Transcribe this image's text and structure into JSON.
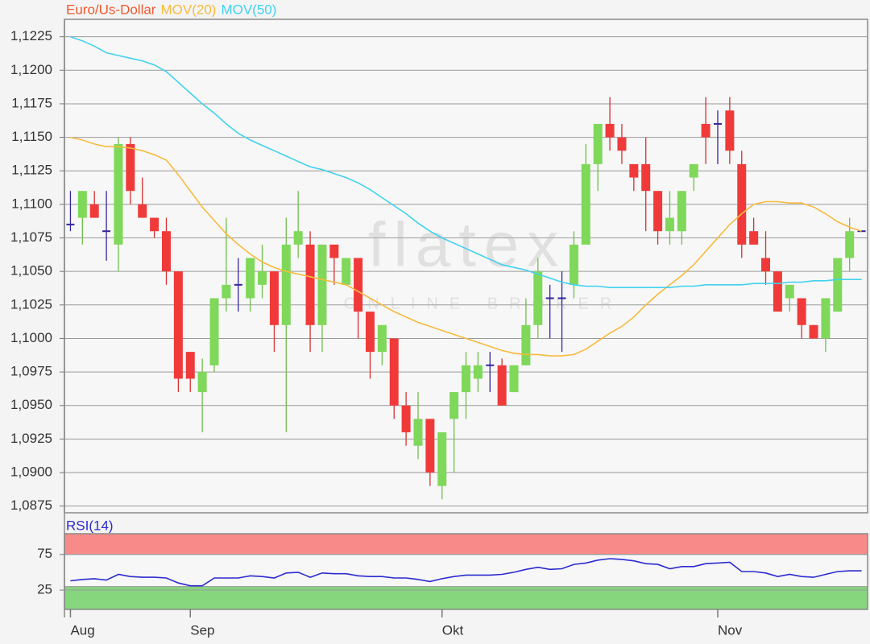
{
  "chart_data": [
    {
      "type": "candlestick",
      "categories": [
        "Aug",
        null,
        null,
        null,
        null,
        null,
        null,
        null,
        null,
        null,
        "Sep",
        null,
        null,
        null,
        null,
        null,
        null,
        null,
        null,
        null,
        null,
        null,
        null,
        null,
        null,
        null,
        null,
        null,
        null,
        null,
        null,
        "Okt",
        null,
        null,
        null,
        null,
        null,
        null,
        null,
        null,
        null,
        null,
        null,
        null,
        null,
        null,
        null,
        null,
        null,
        null,
        null,
        null,
        null,
        null,
        "Nov",
        null,
        null,
        null,
        null,
        null,
        null,
        null,
        null,
        null,
        null,
        null,
        null
      ],
      "ylim": [
        1.087,
        1.1238
      ],
      "yticks": [
        {
          "value": 1.0875,
          "label": "1,0875"
        },
        {
          "value": 1.09,
          "label": "1,0900"
        },
        {
          "value": 1.0925,
          "label": "1,0925"
        },
        {
          "value": 1.095,
          "label": "1,0950"
        },
        {
          "value": 1.0975,
          "label": "1,0975"
        },
        {
          "value": 1.1,
          "label": "1,1000"
        },
        {
          "value": 1.1025,
          "label": "1,1025"
        },
        {
          "value": 1.105,
          "label": "1,1050"
        },
        {
          "value": 1.1075,
          "label": "1,1075"
        },
        {
          "value": 1.11,
          "label": "1,1100"
        },
        {
          "value": 1.1125,
          "label": "1,1125"
        },
        {
          "value": 1.115,
          "label": "1,1150"
        },
        {
          "value": 1.1175,
          "label": "1,1175"
        },
        {
          "value": 1.12,
          "label": "1,1200"
        },
        {
          "value": 1.1225,
          "label": "1,1225"
        }
      ],
      "grid": true,
      "watermark": "flatex",
      "watermark_subtitle": "ONLINE BROKER",
      "series": [
        {
          "name": "Euro/Us-Dollar",
          "color": "#f0582e",
          "up_color": "#7fd85a",
          "down_color": "#f03a3a",
          "doji_color": "#33259e",
          "open": [
            1.1085,
            1.109,
            1.11,
            1.108,
            1.107,
            1.1145,
            1.11,
            1.109,
            1.108,
            1.105,
            1.099,
            1.096,
            1.098,
            1.103,
            1.104,
            1.103,
            1.104,
            1.105,
            1.101,
            1.107,
            1.107,
            1.101,
            1.107,
            1.104,
            1.106,
            1.102,
            1.099,
            1.1,
            1.095,
            1.092,
            1.094,
            1.089,
            1.094,
            1.096,
            1.097,
            1.098,
            1.098,
            1.096,
            1.098,
            1.101,
            1.103,
            1.103,
            1.104,
            1.107,
            1.113,
            1.116,
            1.115,
            1.113,
            1.113,
            1.111,
            1.108,
            1.108,
            1.112,
            1.116,
            1.116,
            1.117,
            1.113,
            1.108,
            1.106,
            1.105,
            1.103,
            1.103,
            1.101,
            1.1,
            1.102,
            1.106,
            1.108
          ],
          "high": [
            1.111,
            1.111,
            1.111,
            1.111,
            1.115,
            1.115,
            1.112,
            1.109,
            1.109,
            1.105,
            1.099,
            1.0985,
            1.103,
            1.109,
            1.106,
            1.106,
            1.107,
            1.105,
            1.109,
            1.111,
            1.108,
            1.107,
            1.107,
            1.106,
            1.106,
            1.102,
            1.101,
            1.1,
            1.096,
            1.096,
            1.094,
            1.093,
            1.096,
            1.099,
            1.099,
            1.099,
            1.0985,
            1.098,
            1.103,
            1.106,
            1.104,
            1.105,
            1.108,
            1.1145,
            1.116,
            1.118,
            1.116,
            1.113,
            1.115,
            1.111,
            1.111,
            1.111,
            1.113,
            1.118,
            1.117,
            1.118,
            1.114,
            1.109,
            1.108,
            1.105,
            1.104,
            1.103,
            1.101,
            1.103,
            1.106,
            1.109,
            1.108
          ],
          "low": [
            1.108,
            1.107,
            1.109,
            1.1058,
            1.105,
            1.11,
            1.109,
            1.1075,
            1.104,
            1.096,
            1.096,
            1.093,
            1.0975,
            1.102,
            1.102,
            1.102,
            1.103,
            1.099,
            1.093,
            1.106,
            1.099,
            1.099,
            1.104,
            1.104,
            1.1,
            1.097,
            1.098,
            1.094,
            1.092,
            1.091,
            1.089,
            1.088,
            1.09,
            1.094,
            1.096,
            1.096,
            1.095,
            1.096,
            1.098,
            1.1,
            1.1,
            1.099,
            1.103,
            1.107,
            1.111,
            1.114,
            1.113,
            1.111,
            1.108,
            1.107,
            1.107,
            1.107,
            1.111,
            1.113,
            1.113,
            1.113,
            1.106,
            1.107,
            1.104,
            1.102,
            1.102,
            1.1,
            1.1,
            1.099,
            1.102,
            1.105,
            1.108
          ],
          "close": [
            1.1085,
            1.111,
            1.109,
            1.108,
            1.1145,
            1.111,
            1.109,
            1.108,
            1.105,
            1.097,
            1.097,
            1.0975,
            1.103,
            1.104,
            1.104,
            1.106,
            1.105,
            1.101,
            1.107,
            1.108,
            1.101,
            1.107,
            1.106,
            1.106,
            1.102,
            1.099,
            1.101,
            1.095,
            1.093,
            1.094,
            1.09,
            1.093,
            1.096,
            1.098,
            1.098,
            1.098,
            1.095,
            1.098,
            1.101,
            1.105,
            1.103,
            1.103,
            1.107,
            1.113,
            1.116,
            1.115,
            1.114,
            1.112,
            1.111,
            1.108,
            1.109,
            1.111,
            1.113,
            1.115,
            1.116,
            1.114,
            1.107,
            1.107,
            1.105,
            1.102,
            1.104,
            1.101,
            1.1,
            1.103,
            1.106,
            1.108,
            1.108
          ]
        },
        {
          "name": "MOV(20)",
          "type": "line",
          "color": "#f7ba3c",
          "values": [
            1.115,
            1.1148,
            1.1145,
            1.1143,
            1.1143,
            1.1142,
            1.114,
            1.1137,
            1.1133,
            1.1122,
            1.111,
            1.1098,
            1.1088,
            1.1078,
            1.107,
            1.1063,
            1.1057,
            1.1053,
            1.105,
            1.1048,
            1.1046,
            1.1044,
            1.1042,
            1.104,
            1.1035,
            1.103,
            1.1025,
            1.102,
            1.1016,
            1.1012,
            1.1009,
            1.1006,
            1.1003,
            1.1,
            1.0997,
            1.0994,
            1.0991,
            1.0989,
            1.0988,
            1.0988,
            1.0987,
            1.0987,
            1.0988,
            1.0992,
            1.0998,
            1.1004,
            1.1009,
            1.1016,
            1.1025,
            1.1033,
            1.104,
            1.1047,
            1.1055,
            1.1065,
            1.1075,
            1.1085,
            1.1093,
            1.11,
            1.1102,
            1.1102,
            1.1101,
            1.1101,
            1.1098,
            1.1093,
            1.1087,
            1.1083,
            1.108
          ]
        },
        {
          "name": "MOV(50)",
          "type": "line",
          "color": "#40d2ee",
          "values": [
            1.1225,
            1.1222,
            1.1218,
            1.1213,
            1.1211,
            1.1209,
            1.1207,
            1.1204,
            1.1199,
            1.1191,
            1.1183,
            1.1175,
            1.1168,
            1.116,
            1.1153,
            1.1148,
            1.1144,
            1.114,
            1.1136,
            1.1132,
            1.1128,
            1.1126,
            1.1123,
            1.112,
            1.1116,
            1.1111,
            1.1105,
            1.1099,
            1.1093,
            1.1086,
            1.108,
            1.1075,
            1.1071,
            1.1067,
            1.1063,
            1.1059,
            1.1055,
            1.1053,
            1.1051,
            1.1048,
            1.1045,
            1.1042,
            1.104,
            1.1039,
            1.1039,
            1.1038,
            1.1038,
            1.1038,
            1.1038,
            1.1038,
            1.1038,
            1.1039,
            1.1039,
            1.104,
            1.104,
            1.104,
            1.104,
            1.1041,
            1.1041,
            1.1041,
            1.1042,
            1.1042,
            1.1043,
            1.1043,
            1.1044,
            1.1044,
            1.1044
          ]
        }
      ]
    },
    {
      "type": "line",
      "title": "RSI(14)",
      "color": "#2b2bd0",
      "ylim": [
        -2,
        104
      ],
      "yticks": [
        25,
        75
      ],
      "grid": true,
      "zones": [
        {
          "from": 75,
          "to": 104,
          "color": "#f88a8a"
        },
        {
          "from": -2,
          "to": 30,
          "color": "#86d67e"
        }
      ],
      "values": [
        38,
        40,
        41,
        39,
        47,
        44,
        43,
        43,
        42,
        35,
        31,
        31,
        42,
        42,
        42,
        45,
        44,
        42,
        49,
        50,
        43,
        49,
        48,
        48,
        45,
        44,
        44,
        42,
        42,
        40,
        37,
        41,
        44,
        46,
        46,
        46,
        47,
        50,
        54,
        57,
        54,
        55,
        61,
        63,
        67,
        69,
        68,
        66,
        62,
        61,
        55,
        58,
        58,
        62,
        63,
        64,
        51,
        51,
        49,
        44,
        47,
        44,
        43,
        47,
        51,
        52,
        52
      ]
    }
  ]
}
